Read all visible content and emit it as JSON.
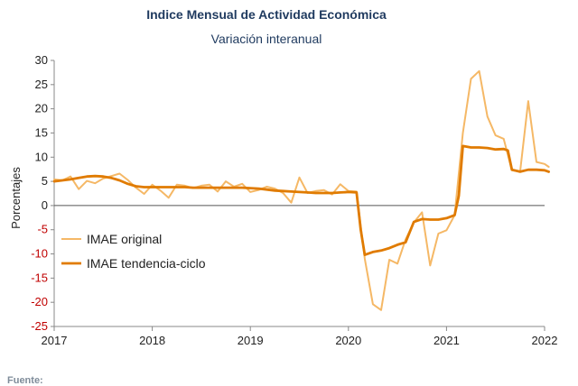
{
  "chart_data": {
    "type": "line",
    "title": "Indice Mensual de  Actividad Económica",
    "subtitle": "Variación interanual",
    "ylabel": "Porcentajes",
    "xlabel": "",
    "ylim": [
      -25,
      30
    ],
    "yticks": [
      "30",
      "25",
      "20",
      "15",
      "10",
      "5",
      "0",
      "-5",
      "-10",
      "-15",
      "-20",
      "-25"
    ],
    "xlim": [
      2017,
      2022
    ],
    "xticks": [
      "2017",
      "2018",
      "2019",
      "2020",
      "2021",
      "2022"
    ],
    "legend_position": "bottom-left",
    "zero_line": true,
    "series": [
      {
        "name": "IMAE original",
        "color": "#f5b866",
        "x": [
          2017.0,
          2017.083,
          2017.167,
          2017.25,
          2017.333,
          2017.417,
          2017.5,
          2017.583,
          2017.667,
          2017.75,
          2017.833,
          2017.917,
          2018.0,
          2018.083,
          2018.167,
          2018.25,
          2018.333,
          2018.417,
          2018.5,
          2018.583,
          2018.667,
          2018.75,
          2018.833,
          2018.917,
          2019.0,
          2019.083,
          2019.167,
          2019.25,
          2019.333,
          2019.417,
          2019.5,
          2019.583,
          2019.667,
          2019.75,
          2019.833,
          2019.917,
          2020.0,
          2020.083,
          2020.167,
          2020.25,
          2020.333,
          2020.417,
          2020.5,
          2020.583,
          2020.667,
          2020.75,
          2020.833,
          2020.917,
          2021.0,
          2021.083,
          2021.167,
          2021.25,
          2021.333,
          2021.417,
          2021.5,
          2021.583,
          2021.667,
          2021.75,
          2021.833,
          2021.917,
          2022.0,
          2022.042
        ],
        "values": [
          5.4,
          5.2,
          6.0,
          3.4,
          5.1,
          4.6,
          5.6,
          6.1,
          6.6,
          5.3,
          3.7,
          2.4,
          4.3,
          3.1,
          1.6,
          4.3,
          4.1,
          3.6,
          4.1,
          4.3,
          2.9,
          5.0,
          3.9,
          4.5,
          2.8,
          3.2,
          3.9,
          3.5,
          2.6,
          0.6,
          5.8,
          2.6,
          3.0,
          3.2,
          2.3,
          4.4,
          3.0,
          2.9,
          -11.0,
          -20.4,
          -21.6,
          -11.2,
          -12.0,
          -7.0,
          -3.5,
          -1.4,
          -12.4,
          -5.8,
          -5.1,
          -2.0,
          15.0,
          26.2,
          27.8,
          18.4,
          14.5,
          13.8,
          7.3,
          7.0,
          21.6,
          9.0,
          8.6,
          8.0
        ]
      },
      {
        "name": "IMAE tendencia-ciclo",
        "color": "#e07b00",
        "x": [
          2017.0,
          2017.083,
          2017.167,
          2017.25,
          2017.333,
          2017.417,
          2017.5,
          2017.583,
          2017.667,
          2017.75,
          2017.833,
          2017.917,
          2018.0,
          2018.083,
          2018.167,
          2018.25,
          2018.333,
          2018.417,
          2018.5,
          2018.583,
          2018.667,
          2018.75,
          2018.833,
          2018.917,
          2019.0,
          2019.083,
          2019.167,
          2019.25,
          2019.333,
          2019.417,
          2019.5,
          2019.583,
          2019.667,
          2019.75,
          2019.833,
          2019.917,
          2020.0,
          2020.083,
          2020.125,
          2020.167,
          2020.25,
          2020.333,
          2020.417,
          2020.5,
          2020.583,
          2020.667,
          2020.75,
          2020.833,
          2020.917,
          2021.0,
          2021.083,
          2021.125,
          2021.167,
          2021.25,
          2021.333,
          2021.417,
          2021.5,
          2021.583,
          2021.625,
          2021.667,
          2021.75,
          2021.833,
          2021.917,
          2022.0,
          2022.042
        ],
        "values": [
          5.0,
          5.2,
          5.4,
          5.7,
          6.0,
          6.1,
          6.0,
          5.7,
          5.2,
          4.5,
          4.0,
          3.8,
          3.8,
          3.8,
          3.8,
          3.8,
          3.8,
          3.7,
          3.7,
          3.7,
          3.7,
          3.7,
          3.7,
          3.7,
          3.6,
          3.5,
          3.3,
          3.1,
          3.0,
          2.9,
          2.8,
          2.7,
          2.6,
          2.6,
          2.6,
          2.7,
          2.8,
          2.7,
          -5.0,
          -10.2,
          -9.6,
          -9.3,
          -8.8,
          -8.1,
          -7.6,
          -3.4,
          -2.8,
          -2.9,
          -2.9,
          -2.6,
          -2.0,
          2.0,
          12.3,
          12.0,
          12.0,
          11.9,
          11.6,
          11.7,
          11.4,
          7.4,
          7.0,
          7.4,
          7.4,
          7.3,
          7.0
        ]
      }
    ]
  },
  "footer": {
    "source_label": "Fuente:"
  }
}
